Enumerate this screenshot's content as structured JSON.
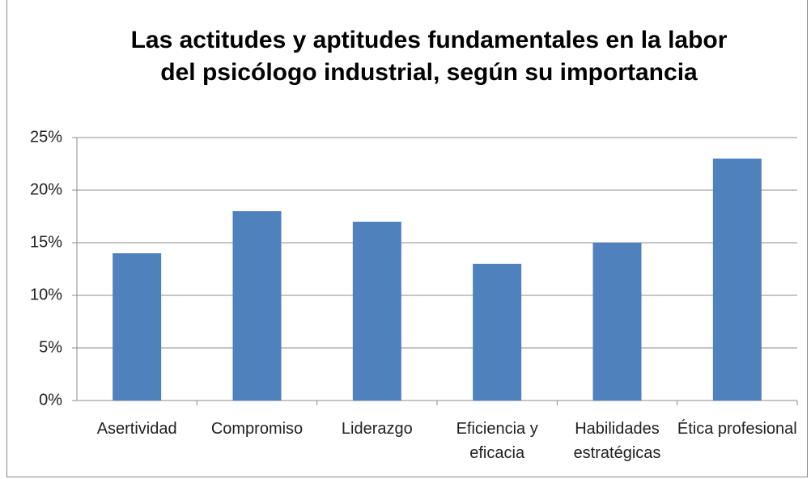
{
  "chart_data": {
    "type": "bar",
    "title": "Las actitudes y aptitudes fundamentales en la labor del psicólogo industrial, según su importancia",
    "categories": [
      "Asertividad",
      "Compromiso",
      "Liderazgo",
      "Eficiencia y eficacia",
      "Habilidades estratégicas",
      "Ética profesional"
    ],
    "values": [
      14,
      18,
      17,
      13,
      15,
      23
    ],
    "color": "#4f81bd",
    "ylim": [
      0,
      25
    ],
    "yticks": [
      {
        "value": 0,
        "label": "0%"
      },
      {
        "value": 5,
        "label": "5%"
      },
      {
        "value": 10,
        "label": "10%"
      },
      {
        "value": 15,
        "label": "15%"
      },
      {
        "value": 20,
        "label": "20%"
      },
      {
        "value": 25,
        "label": "25%"
      }
    ],
    "grid": true
  }
}
